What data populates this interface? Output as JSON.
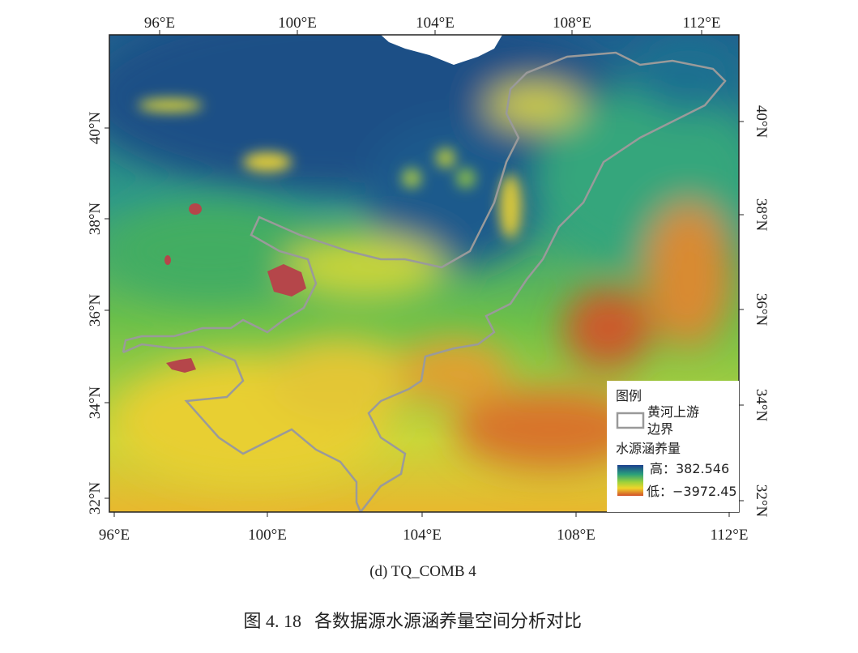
{
  "map": {
    "x_labels_top": [
      "96°E",
      "100°E",
      "104°E",
      "108°E",
      "112°E"
    ],
    "x_labels_bottom": [
      "96°E",
      "100°E",
      "104°E",
      "108°E",
      "112°E"
    ],
    "y_labels_left": [
      "40°N",
      "38°N",
      "36°N",
      "34°N",
      "32°N"
    ],
    "y_labels_right": [
      "40°N",
      "38°N",
      "36°N",
      "34°N",
      "32°N"
    ],
    "legend": {
      "title": "图例",
      "boundary_label": [
        "黄河上游",
        "边界"
      ],
      "layer_title": "水源涵养量",
      "high": "高：382.546",
      "low": "低：−3972.45"
    }
  },
  "subcaption": "(d) TQ_COMB 4",
  "caption": {
    "number": "图 4. 18",
    "text": "各数据源水源涵养量空间分析对比"
  }
}
